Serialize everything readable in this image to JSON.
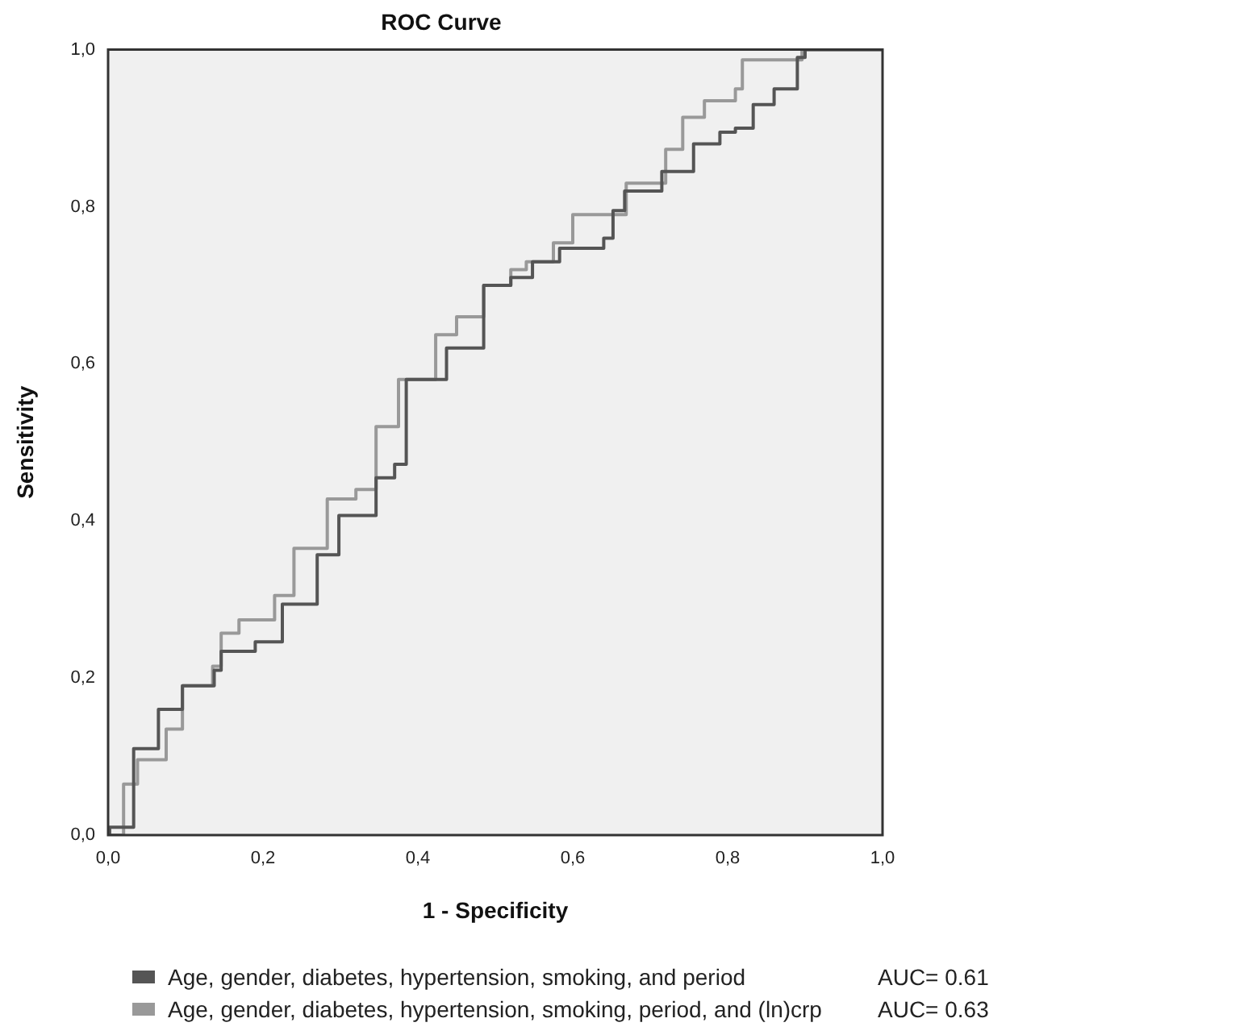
{
  "chart_data": {
    "type": "step",
    "title": "ROC Curve",
    "xlabel": "1 - Specificity",
    "ylabel": "Sensitivity",
    "xlim": [
      0,
      1
    ],
    "ylim": [
      0,
      1
    ],
    "xticks": [
      {
        "value": 0,
        "label": "0,0"
      },
      {
        "value": 0.2,
        "label": "0,2"
      },
      {
        "value": 0.4,
        "label": "0,4"
      },
      {
        "value": 0.6,
        "label": "0,6"
      },
      {
        "value": 0.8,
        "label": "0,8"
      },
      {
        "value": 1,
        "label": "1,0"
      }
    ],
    "yticks": [
      {
        "value": 0,
        "label": "0,0"
      },
      {
        "value": 0.2,
        "label": "0,2"
      },
      {
        "value": 0.4,
        "label": "0,4"
      },
      {
        "value": 0.6,
        "label": "0,6"
      },
      {
        "value": 0.8,
        "label": "0,8"
      },
      {
        "value": 1,
        "label": "1,0"
      }
    ],
    "grid": false,
    "legend": "bottom",
    "marker": "none",
    "line_style": "solid",
    "annotations": [
      "AUC= 0.61",
      "AUC= 0.63"
    ],
    "series": [
      {
        "name": "Age, gender, diabetes, hypertension, smoking, and period",
        "color": "#555555",
        "x": [
          0,
          0.002,
          0.033,
          0.065,
          0.096,
          0.137,
          0.146,
          0.173,
          0.19,
          0.225,
          0.27,
          0.298,
          0.346,
          0.37,
          0.385,
          0.433,
          0.437,
          0.485,
          0.52,
          0.548,
          0.583,
          0.64,
          0.652,
          0.667,
          0.715,
          0.756,
          0.79,
          0.81,
          0.833,
          0.86,
          0.89,
          0.9,
          1
        ],
        "values": [
          0,
          0.01,
          0.11,
          0.16,
          0.19,
          0.21,
          0.234,
          0.234,
          0.246,
          0.294,
          0.357,
          0.407,
          0.455,
          0.472,
          0.58,
          0.58,
          0.62,
          0.7,
          0.71,
          0.73,
          0.747,
          0.76,
          0.795,
          0.82,
          0.845,
          0.88,
          0.895,
          0.9,
          0.93,
          0.95,
          0.99,
          1,
          1
        ]
      },
      {
        "name": "Age, gender, diabetes, hypertension, smoking, period, and (ln)crp",
        "color": "#999999",
        "x": [
          0,
          0.02,
          0.038,
          0.075,
          0.096,
          0.135,
          0.146,
          0.169,
          0.215,
          0.24,
          0.283,
          0.32,
          0.346,
          0.375,
          0.423,
          0.45,
          0.485,
          0.52,
          0.54,
          0.575,
          0.6,
          0.648,
          0.669,
          0.72,
          0.742,
          0.77,
          0.81,
          0.819,
          0.88,
          0.896,
          1
        ],
        "values": [
          0,
          0.065,
          0.096,
          0.135,
          0.19,
          0.215,
          0.257,
          0.274,
          0.305,
          0.365,
          0.428,
          0.44,
          0.52,
          0.58,
          0.637,
          0.66,
          0.7,
          0.72,
          0.73,
          0.754,
          0.79,
          0.79,
          0.83,
          0.873,
          0.914,
          0.935,
          0.95,
          0.987,
          0.987,
          1,
          1
        ]
      }
    ]
  }
}
